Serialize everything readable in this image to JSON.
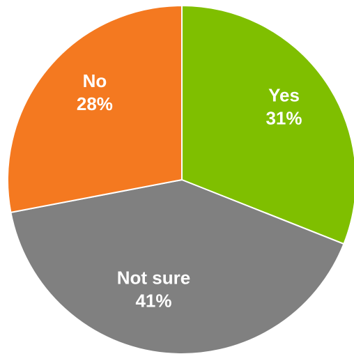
{
  "chart_data": {
    "type": "pie",
    "categories": [
      "Yes",
      "Not sure",
      "No"
    ],
    "values": [
      31,
      41,
      28
    ],
    "value_labels": [
      "31%",
      "41%",
      "28%"
    ],
    "colors": [
      "#7FBF00",
      "#808080",
      "#F47920"
    ],
    "start_angle_deg": 0,
    "direction": "clockwise",
    "legend": "none",
    "title": ""
  }
}
